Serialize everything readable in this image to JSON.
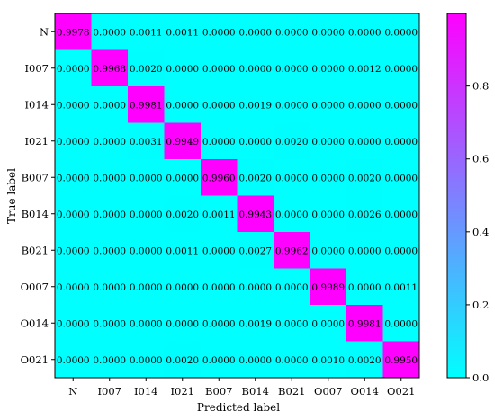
{
  "chart_data": {
    "type": "heatmap",
    "title": "",
    "xlabel": "Predicted label",
    "ylabel": "True label",
    "x_categories": [
      "N",
      "I007",
      "I014",
      "I021",
      "B007",
      "B014",
      "B021",
      "O007",
      "O014",
      "O021"
    ],
    "y_categories": [
      "N",
      "I007",
      "I014",
      "I021",
      "B007",
      "B014",
      "B021",
      "O007",
      "O014",
      "O021"
    ],
    "values": [
      [
        "0.9978",
        "0.0000",
        "0.0011",
        "0.0011",
        "0.0000",
        "0.0000",
        "0.0000",
        "0.0000",
        "0.0000",
        "0.0000"
      ],
      [
        "0.0000",
        "0.9968",
        "0.0020",
        "0.0000",
        "0.0000",
        "0.0000",
        "0.0000",
        "0.0000",
        "0.0012",
        "0.0000"
      ],
      [
        "0.0000",
        "0.0000",
        "0.9981",
        "0.0000",
        "0.0000",
        "0.0019",
        "0.0000",
        "0.0000",
        "0.0000",
        "0.0000"
      ],
      [
        "0.0000",
        "0.0000",
        "0.0031",
        "0.9949",
        "0.0000",
        "0.0000",
        "0.0020",
        "0.0000",
        "0.0000",
        "0.0000"
      ],
      [
        "0.0000",
        "0.0000",
        "0.0000",
        "0.0000",
        "0.9960",
        "0.0020",
        "0.0000",
        "0.0000",
        "0.0020",
        "0.0000"
      ],
      [
        "0.0000",
        "0.0000",
        "0.0000",
        "0.0020",
        "0.0011",
        "0.9943",
        "0.0000",
        "0.0000",
        "0.0026",
        "0.0000"
      ],
      [
        "0.0000",
        "0.0000",
        "0.0000",
        "0.0011",
        "0.0000",
        "0.0027",
        "0.9962",
        "0.0000",
        "0.0000",
        "0.0000"
      ],
      [
        "0.0000",
        "0.0000",
        "0.0000",
        "0.0000",
        "0.0000",
        "0.0000",
        "0.0000",
        "0.9989",
        "0.0000",
        "0.0011"
      ],
      [
        "0.0000",
        "0.0000",
        "0.0000",
        "0.0000",
        "0.0000",
        "0.0019",
        "0.0000",
        "0.0000",
        "0.9981",
        "0.0000"
      ],
      [
        "0.0000",
        "0.0000",
        "0.0000",
        "0.0020",
        "0.0000",
        "0.0000",
        "0.0000",
        "0.0010",
        "0.0020",
        "0.9950"
      ]
    ],
    "colorscale": {
      "min": 0.0,
      "max": 1.0,
      "colors": [
        "#00ffff",
        "#ff00ff"
      ]
    },
    "colorbar": {
      "ticks": [
        "0.0",
        "0.2",
        "0.4",
        "0.6",
        "0.8"
      ],
      "tick_values": [
        0.0,
        0.2,
        0.4,
        0.6,
        0.8
      ]
    },
    "grid": false
  }
}
